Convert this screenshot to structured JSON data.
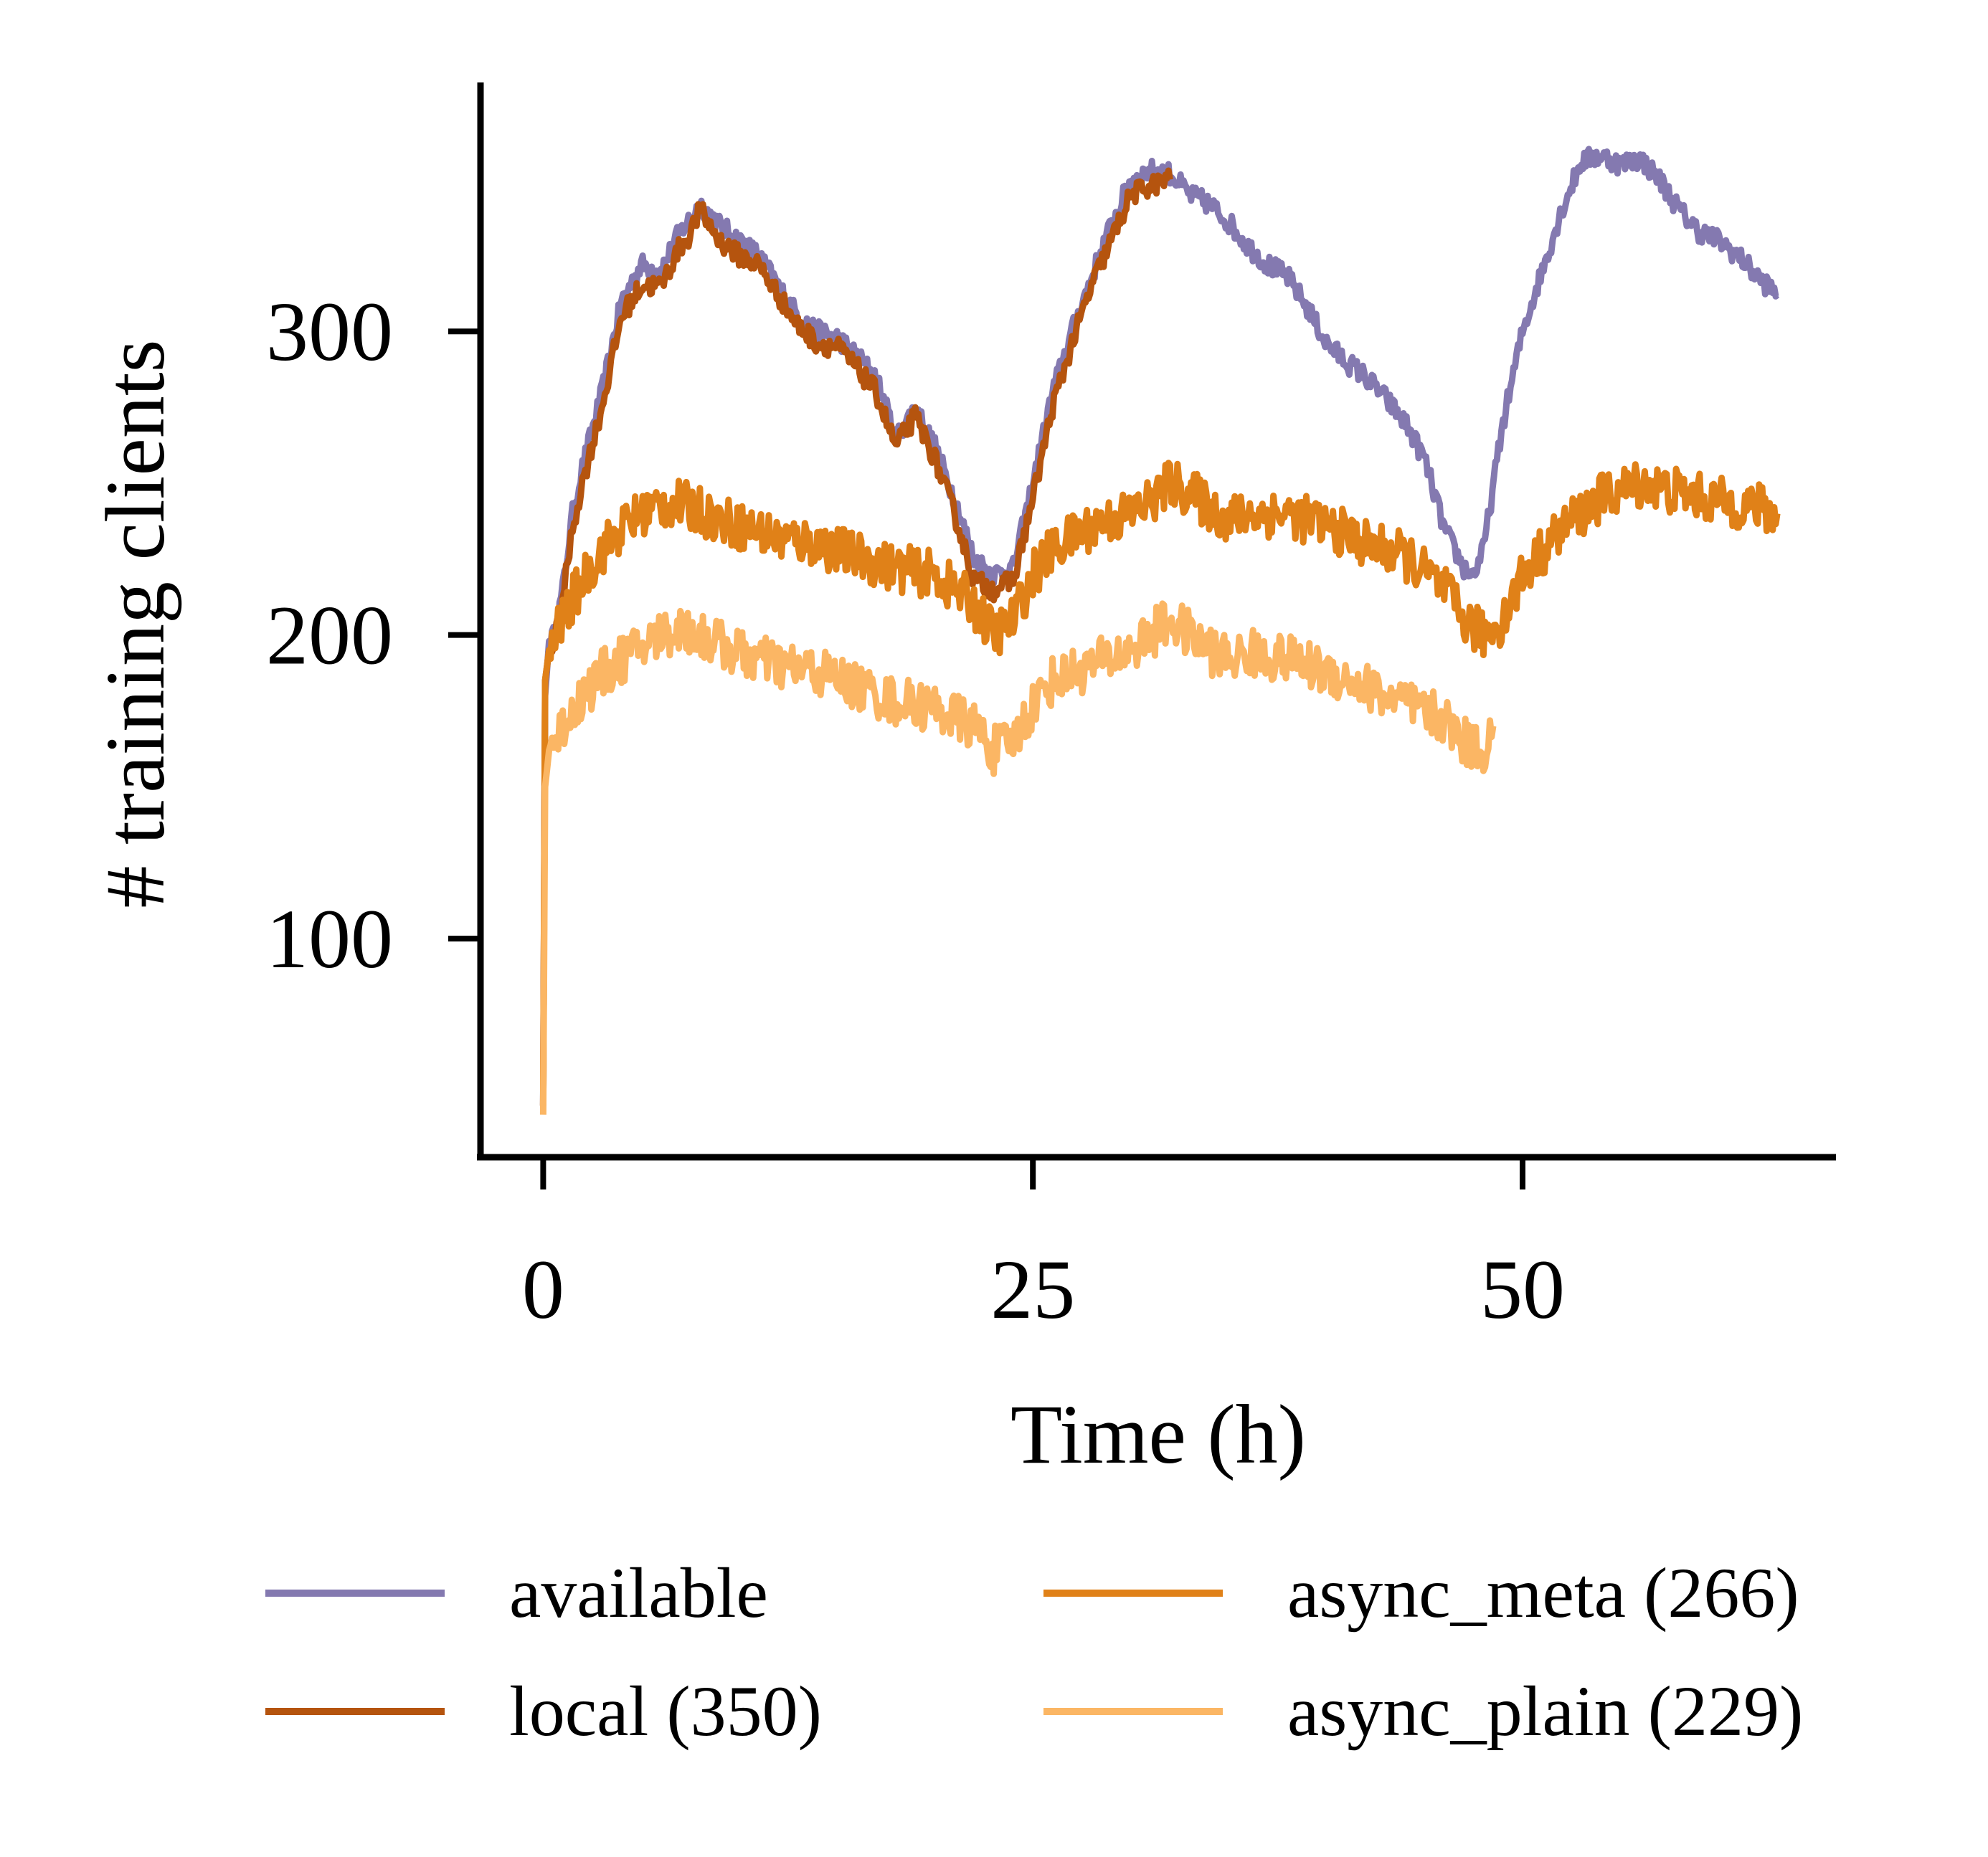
{
  "chart_data": {
    "type": "line",
    "title": "",
    "xlabel": "Time (h)",
    "ylabel": "# training clients",
    "xlim": [
      -3.2,
      66
    ],
    "ylim": [
      28,
      382
    ],
    "xticks": [
      0,
      25,
      50
    ],
    "xtick_labels": [
      "0",
      "25",
      "50"
    ],
    "yticks": [
      100,
      200,
      300
    ],
    "ytick_labels": [
      "100",
      "200",
      "300"
    ],
    "grid": false,
    "legend": {
      "placement": "bottom",
      "columns": 2
    },
    "series": [
      {
        "name": "available",
        "color": "#8479b0",
        "x": [
          0,
          0.1,
          0.3,
          0.6,
          1,
          1.5,
          2,
          3,
          4,
          5,
          6,
          7,
          7.5,
          8,
          9,
          10,
          11,
          12,
          13,
          14,
          15,
          16,
          17,
          18,
          19,
          20,
          21,
          22,
          23,
          24,
          25,
          26,
          27,
          28,
          29,
          30,
          31,
          32,
          33,
          34,
          35,
          36,
          37,
          38,
          39,
          40,
          41,
          42,
          43,
          44,
          45,
          46,
          47,
          47.5,
          48,
          49,
          50,
          51,
          52,
          53,
          54,
          55,
          56,
          57,
          58,
          59,
          60,
          61,
          62,
          63
        ],
        "values": [
          45,
          180,
          198,
          200,
          215,
          240,
          255,
          280,
          310,
          322,
          320,
          333,
          337,
          342,
          335,
          330,
          325,
          315,
          305,
          300,
          298,
          292,
          285,
          265,
          275,
          262,
          245,
          225,
          220,
          222,
          250,
          280,
          300,
          318,
          335,
          350,
          353,
          352,
          345,
          342,
          336,
          328,
          322,
          318,
          308,
          296,
          290,
          285,
          278,
          270,
          258,
          235,
          222,
          220,
          228,
          270,
          300,
          320,
          340,
          356,
          358,
          355,
          357,
          350,
          340,
          333,
          330,
          325,
          318,
          312
        ]
      },
      {
        "name": "local (350)",
        "color": "#b5540e",
        "x": [
          0,
          0.1,
          0.3,
          0.6,
          1,
          1.5,
          2,
          3,
          4,
          5,
          6,
          7,
          7.5,
          8,
          9,
          10,
          11,
          12,
          13,
          14,
          15,
          16,
          17,
          18,
          19,
          20,
          21,
          22,
          23,
          24,
          25,
          26,
          27,
          28,
          29,
          30,
          31,
          32
        ],
        "values": [
          45,
          185,
          195,
          198,
          212,
          235,
          250,
          275,
          305,
          315,
          315,
          328,
          332,
          340,
          330,
          325,
          322,
          312,
          302,
          296,
          295,
          288,
          280,
          262,
          272,
          258,
          240,
          218,
          215,
          218,
          245,
          275,
          296,
          315,
          330,
          345,
          348,
          350
        ]
      },
      {
        "name": "async_meta (266)",
        "color": "#e08118",
        "x": [
          0,
          0.1,
          0.3,
          1,
          2,
          3,
          4,
          5,
          6,
          7,
          8,
          9,
          10,
          12,
          14,
          16,
          18,
          20,
          22,
          23,
          24,
          25,
          26,
          28,
          30,
          31,
          32,
          33,
          34,
          35,
          36,
          38,
          40,
          42,
          44,
          46,
          47,
          48,
          49,
          50,
          52,
          54,
          56,
          58,
          60,
          62,
          63
        ],
        "values": [
          45,
          185,
          195,
          205,
          218,
          228,
          235,
          240,
          243,
          243,
          241,
          238,
          236,
          232,
          230,
          226,
          222,
          220,
          210,
          200,
          205,
          220,
          228,
          236,
          240,
          244,
          250,
          247,
          242,
          238,
          240,
          240,
          236,
          230,
          226,
          215,
          205,
          200,
          205,
          220,
          235,
          245,
          250,
          247,
          244,
          242,
          240
        ]
      },
      {
        "name": "async_plain (229)",
        "color": "#fbb664",
        "x": [
          0,
          0.1,
          0.3,
          1,
          2,
          3,
          4,
          5,
          6,
          7,
          8,
          9,
          10,
          12,
          14,
          16,
          18,
          20,
          22,
          23,
          24,
          25,
          26,
          28,
          30,
          31,
          32,
          33,
          34,
          35,
          36,
          38,
          40,
          42,
          44,
          46,
          47,
          48,
          48.5
        ],
        "values": [
          42,
          150,
          162,
          170,
          180,
          187,
          192,
          196,
          200,
          202,
          200,
          197,
          194,
          190,
          188,
          183,
          178,
          176,
          170,
          162,
          165,
          177,
          185,
          190,
          195,
          200,
          205,
          200,
          195,
          192,
          194,
          192,
          188,
          183,
          177,
          172,
          165,
          162,
          170
        ]
      }
    ]
  }
}
